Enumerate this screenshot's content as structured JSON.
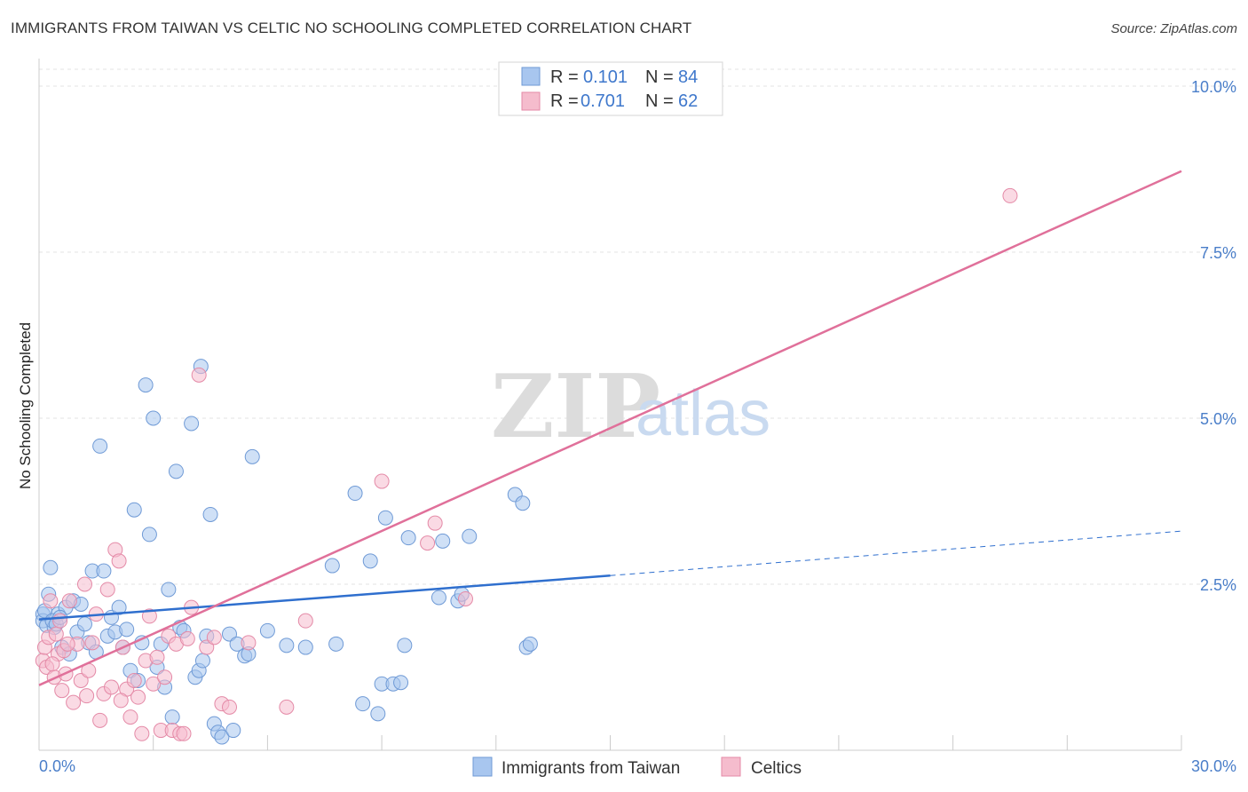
{
  "title": "IMMIGRANTS FROM TAIWAN VS CELTIC NO SCHOOLING COMPLETED CORRELATION CHART",
  "source": "Source: ZipAtlas.com",
  "watermark": {
    "zip": "ZIP",
    "atlas": "atlas"
  },
  "colors": {
    "blue_fill": "#a8c6ef",
    "blue_stroke": "#6f9ad6",
    "blue_line": "#2f6fce",
    "pink_fill": "#f5bccd",
    "pink_stroke": "#e48aa7",
    "pink_line": "#e0709a",
    "grid": "#e3e3e3",
    "axis_text": "#4a7ec9"
  },
  "legend": {
    "r_label": "R =",
    "n_label": "N =",
    "series": [
      {
        "r": "0.101",
        "n": "84"
      },
      {
        "r": "0.701",
        "n": "62"
      }
    ]
  },
  "chart_data": {
    "type": "scatter",
    "xlabel": "",
    "ylabel": "No Schooling Completed",
    "xlim": [
      0,
      30
    ],
    "ylim": [
      0,
      10.5
    ],
    "x_tick_labels": [
      "0.0%",
      "30.0%"
    ],
    "y_ticks": [
      2.5,
      5.0,
      7.5,
      10.0
    ],
    "y_tick_labels": [
      "2.5%",
      "5.0%",
      "7.5%",
      "10.0%"
    ],
    "series": [
      {
        "name": "Immigrants from Taiwan",
        "trend": {
          "x1": 0,
          "y1": 1.97,
          "x2": 15,
          "y2": 2.63,
          "dashed_to_x": 30,
          "dashed_to_y": 3.3
        },
        "points": [
          [
            0.1,
            2.05
          ],
          [
            0.1,
            1.95
          ],
          [
            0.2,
            1.88
          ],
          [
            0.25,
            2.35
          ],
          [
            0.3,
            2.75
          ],
          [
            0.4,
            1.85
          ],
          [
            0.5,
            2.05
          ],
          [
            0.6,
            1.55
          ],
          [
            0.7,
            2.15
          ],
          [
            0.8,
            1.45
          ],
          [
            0.9,
            2.25
          ],
          [
            1.0,
            1.78
          ],
          [
            1.1,
            2.2
          ],
          [
            1.2,
            1.9
          ],
          [
            1.3,
            1.62
          ],
          [
            1.4,
            2.7
          ],
          [
            1.5,
            1.48
          ],
          [
            1.6,
            4.58
          ],
          [
            1.7,
            2.7
          ],
          [
            1.8,
            1.72
          ],
          [
            1.9,
            2.0
          ],
          [
            2.0,
            1.78
          ],
          [
            2.1,
            2.15
          ],
          [
            2.2,
            1.55
          ],
          [
            2.3,
            1.82
          ],
          [
            2.4,
            1.2
          ],
          [
            2.5,
            3.62
          ],
          [
            2.6,
            1.05
          ],
          [
            2.7,
            1.62
          ],
          [
            2.8,
            5.5
          ],
          [
            2.9,
            3.25
          ],
          [
            3.0,
            5.0
          ],
          [
            3.1,
            1.25
          ],
          [
            3.2,
            1.6
          ],
          [
            3.3,
            0.95
          ],
          [
            3.4,
            2.42
          ],
          [
            3.5,
            0.5
          ],
          [
            3.6,
            4.2
          ],
          [
            3.7,
            1.85
          ],
          [
            3.8,
            1.8
          ],
          [
            4.0,
            4.92
          ],
          [
            4.1,
            1.1
          ],
          [
            4.2,
            1.2
          ],
          [
            4.3,
            1.35
          ],
          [
            4.4,
            1.72
          ],
          [
            4.5,
            3.55
          ],
          [
            4.6,
            0.4
          ],
          [
            4.7,
            0.27
          ],
          [
            4.8,
            0.2
          ],
          [
            5.0,
            1.75
          ],
          [
            5.1,
            0.3
          ],
          [
            5.2,
            1.6
          ],
          [
            5.4,
            1.42
          ],
          [
            5.5,
            1.45
          ],
          [
            5.6,
            4.42
          ],
          [
            6.0,
            1.8
          ],
          [
            6.5,
            1.58
          ],
          [
            7.0,
            1.55
          ],
          [
            7.7,
            2.78
          ],
          [
            7.8,
            1.6
          ],
          [
            8.3,
            3.87
          ],
          [
            8.5,
            0.7
          ],
          [
            8.7,
            2.85
          ],
          [
            8.9,
            0.55
          ],
          [
            9.0,
            1.0
          ],
          [
            9.1,
            3.5
          ],
          [
            9.3,
            1.0
          ],
          [
            9.5,
            1.02
          ],
          [
            9.6,
            1.58
          ],
          [
            9.7,
            3.2
          ],
          [
            10.5,
            2.3
          ],
          [
            10.6,
            3.15
          ],
          [
            11.0,
            2.25
          ],
          [
            11.1,
            2.35
          ],
          [
            11.3,
            3.22
          ],
          [
            12.5,
            3.85
          ],
          [
            12.7,
            3.72
          ],
          [
            12.8,
            1.55
          ],
          [
            12.9,
            1.6
          ],
          [
            0.15,
            2.1
          ],
          [
            0.35,
            1.95
          ],
          [
            0.45,
            1.9
          ],
          [
            0.55,
            2.0
          ],
          [
            4.25,
            5.78
          ]
        ]
      },
      {
        "name": "Celtics",
        "trend": {
          "x1": 0,
          "y1": 0.98,
          "x2": 30,
          "y2": 8.72
        },
        "points": [
          [
            0.1,
            1.35
          ],
          [
            0.15,
            1.55
          ],
          [
            0.2,
            1.25
          ],
          [
            0.3,
            2.25
          ],
          [
            0.4,
            1.1
          ],
          [
            0.5,
            1.45
          ],
          [
            0.6,
            0.9
          ],
          [
            0.7,
            1.15
          ],
          [
            0.8,
            2.25
          ],
          [
            0.9,
            0.72
          ],
          [
            1.0,
            1.6
          ],
          [
            1.1,
            1.05
          ],
          [
            1.2,
            2.5
          ],
          [
            1.3,
            1.2
          ],
          [
            1.4,
            1.62
          ],
          [
            1.5,
            2.05
          ],
          [
            1.6,
            0.45
          ],
          [
            1.7,
            0.85
          ],
          [
            1.8,
            2.42
          ],
          [
            1.9,
            0.95
          ],
          [
            2.0,
            3.02
          ],
          [
            2.1,
            2.85
          ],
          [
            2.2,
            1.55
          ],
          [
            2.3,
            0.92
          ],
          [
            2.4,
            0.5
          ],
          [
            2.5,
            1.05
          ],
          [
            2.6,
            0.8
          ],
          [
            2.7,
            0.25
          ],
          [
            2.8,
            1.35
          ],
          [
            2.9,
            2.02
          ],
          [
            3.0,
            1.0
          ],
          [
            3.1,
            1.4
          ],
          [
            3.2,
            0.3
          ],
          [
            3.3,
            1.1
          ],
          [
            3.4,
            1.72
          ],
          [
            3.5,
            0.3
          ],
          [
            3.6,
            1.6
          ],
          [
            3.7,
            0.25
          ],
          [
            3.8,
            0.25
          ],
          [
            3.9,
            1.68
          ],
          [
            4.0,
            2.15
          ],
          [
            4.2,
            5.65
          ],
          [
            4.4,
            1.55
          ],
          [
            4.6,
            1.7
          ],
          [
            4.8,
            0.7
          ],
          [
            5.0,
            0.65
          ],
          [
            5.5,
            1.62
          ],
          [
            6.5,
            0.65
          ],
          [
            7.0,
            1.95
          ],
          [
            9.0,
            4.05
          ],
          [
            10.2,
            3.12
          ],
          [
            10.4,
            3.42
          ],
          [
            11.2,
            2.28
          ],
          [
            0.25,
            1.7
          ],
          [
            0.35,
            1.3
          ],
          [
            0.45,
            1.75
          ],
          [
            0.55,
            1.95
          ],
          [
            0.65,
            1.5
          ],
          [
            0.75,
            1.6
          ],
          [
            1.25,
            0.82
          ],
          [
            2.15,
            0.75
          ],
          [
            25.5,
            8.35
          ]
        ]
      }
    ]
  }
}
